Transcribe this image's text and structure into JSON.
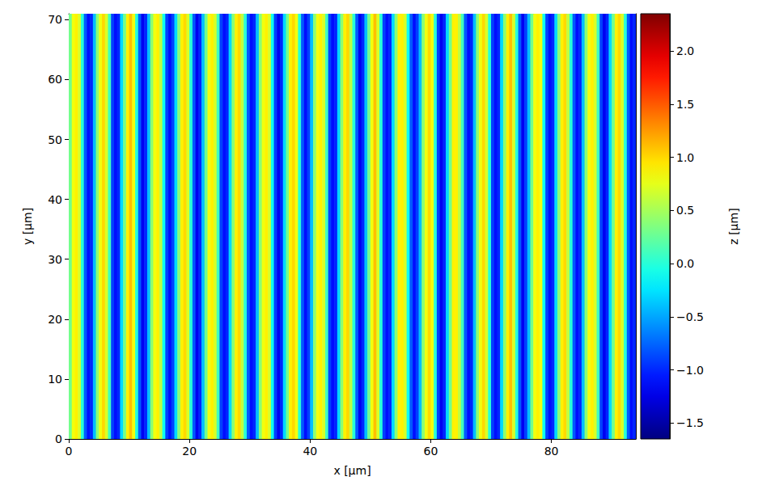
{
  "chart_data": {
    "type": "heatmap",
    "xlabel": "x [µm]",
    "ylabel": "y [µm]",
    "xlim": [
      0,
      94
    ],
    "ylim": [
      0,
      71
    ],
    "xticks": [
      0,
      20,
      40,
      60,
      80
    ],
    "yticks": [
      0,
      10,
      20,
      30,
      40,
      50,
      60,
      70
    ],
    "grid": false,
    "x_edges": [
      0,
      0.5,
      1,
      1.5,
      2,
      2.5,
      3,
      3.5,
      4,
      4.5,
      5,
      5.5,
      6,
      6.5,
      7,
      7.5,
      8,
      8.5,
      9,
      9.5,
      10,
      10.5,
      11,
      11.5,
      12,
      12.5,
      13,
      13.5,
      14,
      14.5,
      15,
      15.5,
      16,
      16.5,
      17,
      17.5,
      18,
      18.5,
      19,
      19.5,
      20,
      20.5,
      21,
      21.5,
      22,
      22.5,
      23,
      23.5,
      24,
      24.5,
      25,
      25.5,
      26,
      26.5,
      27,
      27.5,
      28,
      28.5,
      29,
      29.5,
      30,
      30.5,
      31,
      31.5,
      32,
      32.5,
      33,
      33.5,
      34,
      34.5,
      35,
      35.5,
      36,
      36.5,
      37,
      37.5,
      38,
      38.5,
      39,
      39.5,
      40,
      40.5,
      41,
      41.5,
      42,
      42.5,
      43,
      43.5,
      44,
      44.5,
      45,
      45.5,
      46,
      46.5,
      47,
      47.5,
      48,
      48.5,
      49,
      49.5,
      50,
      50.5,
      51,
      51.5,
      52,
      52.5,
      53,
      53.5,
      54,
      54.5,
      55,
      55.5,
      56,
      56.5,
      57,
      57.5,
      58,
      58.5,
      59,
      59.5,
      60,
      60.5,
      61,
      61.5,
      62,
      62.5,
      63,
      63.5,
      64,
      64.5,
      65,
      65.5,
      66,
      66.5,
      67,
      67.5,
      68,
      68.5,
      69,
      69.5,
      70,
      70.5,
      71,
      71.5,
      72,
      72.5,
      73,
      73.5,
      74,
      74.5,
      75,
      75.5,
      76,
      76.5,
      77,
      77.5,
      78,
      78.5,
      79,
      79.5,
      80,
      80.5,
      81,
      81.5,
      82,
      82.5,
      83,
      83.5,
      84,
      84.5,
      85,
      85.5,
      86,
      86.5,
      87,
      87.5,
      88,
      88.5,
      89,
      89.5,
      90,
      90.5,
      91,
      91.5,
      92,
      92.5,
      93,
      93.5,
      94
    ],
    "y_edges": [
      0,
      71
    ],
    "z": [
      [
        0.3,
        0.8,
        0.9,
        0.7,
        0.0,
        -0.8,
        -1.1,
        -1.0,
        -0.4,
        0.4,
        0.8,
        1.0,
        0.7,
        0.1,
        -0.9,
        -1.1,
        -1.0,
        -0.3,
        0.3,
        0.9,
        1.1,
        0.8,
        0.0,
        -0.8,
        -1.2,
        -1.0,
        -0.4,
        0.4,
        0.8,
        0.9,
        0.6,
        -0.1,
        -0.9,
        -1.1,
        -0.9,
        -0.3,
        0.4,
        0.9,
        1.0,
        0.7,
        0.0,
        -0.8,
        -1.2,
        -1.0,
        -0.4,
        0.3,
        0.8,
        0.9,
        0.7,
        0.1,
        -0.9,
        -1.1,
        -1.0,
        -0.3,
        0.4,
        0.9,
        1.0,
        0.6,
        0.0,
        -0.8,
        -1.1,
        -1.0,
        -0.4,
        0.4,
        0.8,
        0.9,
        0.7,
        -0.1,
        -0.9,
        -1.2,
        -1.0,
        -0.3,
        0.3,
        0.9,
        1.0,
        0.8,
        0.0,
        -0.8,
        -1.1,
        -0.9,
        -0.4,
        0.4,
        0.8,
        0.9,
        0.7,
        0.1,
        -0.9,
        -1.1,
        -1.0,
        -0.3,
        0.4,
        0.9,
        1.0,
        0.6,
        0.0,
        -0.8,
        -1.2,
        -1.0,
        -0.4,
        0.3,
        0.8,
        1.1,
        0.7,
        0.0,
        -0.9,
        -1.1,
        -1.0,
        -0.3,
        0.4,
        0.9,
        0.9,
        0.7,
        -0.1,
        -0.8,
        -1.1,
        -0.9,
        -0.4,
        0.4,
        0.8,
        1.0,
        0.8,
        0.0,
        -0.9,
        -1.2,
        -1.0,
        -0.3,
        0.3,
        0.9,
        0.9,
        0.6,
        0.1,
        -0.8,
        -1.1,
        -1.0,
        -0.4,
        0.4,
        0.8,
        1.0,
        0.7,
        0.0,
        -0.9,
        -1.1,
        -1.0,
        -0.3,
        0.4,
        0.9,
        1.1,
        0.7,
        0.0,
        -0.8,
        -1.2,
        -0.9,
        -0.4,
        0.3,
        0.8,
        0.9,
        0.8,
        -0.1,
        -0.9,
        -1.1,
        -1.0,
        -0.3,
        0.4,
        0.9,
        1.0,
        0.6,
        0.0,
        -0.8,
        -1.1,
        -1.0,
        -0.4,
        0.4,
        0.8,
        0.9,
        0.7,
        0.1,
        -0.9,
        -1.2,
        -1.0,
        -0.3,
        0.3,
        0.9,
        1.0,
        0.7,
        0.0,
        -0.8,
        -1.1,
        -1.0
      ]
    ],
    "colorbar": {
      "label": "z [µm]",
      "range": [
        -1.65,
        2.35
      ],
      "ticks": [
        {
          "value": -1.5,
          "label": "−1.5"
        },
        {
          "value": -1.0,
          "label": "−1.0"
        },
        {
          "value": -0.5,
          "label": "−0.5"
        },
        {
          "value": 0,
          "label": "0.0"
        },
        0.5,
        {
          "value": 1.0,
          "label": "1.0"
        },
        1.5,
        {
          "value": 2.0,
          "label": "2.0"
        }
      ]
    }
  }
}
